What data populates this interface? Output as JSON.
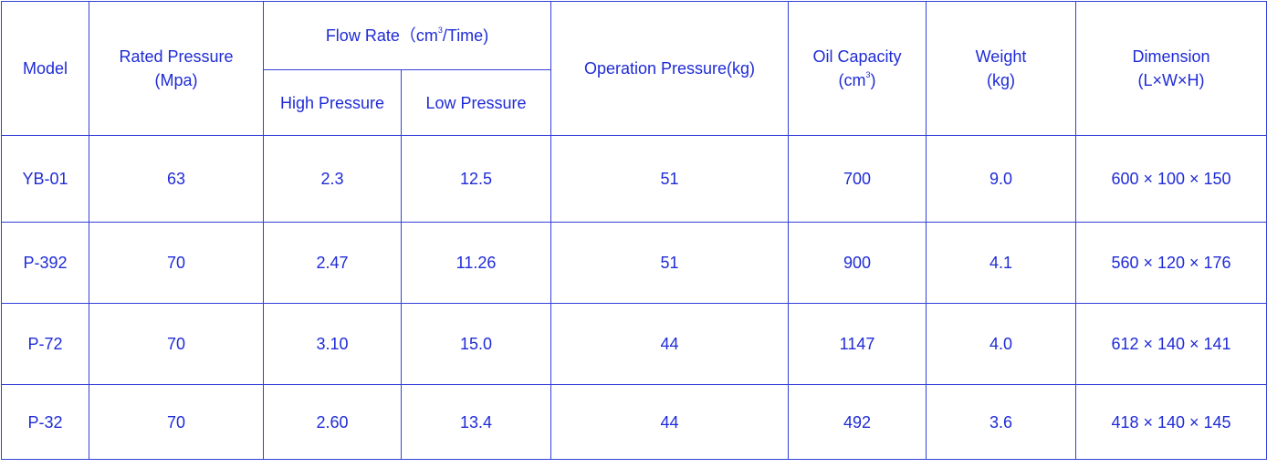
{
  "headers": {
    "model": "Model",
    "rated_pressure": {
      "line1": "Rated Pressure",
      "line2": "(Mpa)"
    },
    "flow_rate": {
      "prefix": "Flow Rate（cm",
      "sup": "3",
      "suffix": "/Time)"
    },
    "high_pressure": "High Pressure",
    "low_pressure": "Low Pressure",
    "operation_pressure": "Operation Pressure(kg)",
    "oil_capacity": {
      "line1": "Oil Capacity",
      "line2_prefix": "(cm",
      "sup": "3",
      "line2_suffix": ")"
    },
    "weight": {
      "line1": "Weight",
      "line2": "(kg)"
    },
    "dimension": {
      "line1": "Dimension",
      "line2": "(L×W×H)"
    }
  },
  "rows": [
    {
      "model": "YB-01",
      "rated": "63",
      "high": "2.3",
      "low": "12.5",
      "operation": "51",
      "oil": "700",
      "weight": "9.0",
      "dimension": "600 × 100 × 150"
    },
    {
      "model": "P-392",
      "rated": "70",
      "high": "2.47",
      "low": "11.26",
      "operation": "51",
      "oil": "900",
      "weight": "4.1",
      "dimension": "560 × 120 × 176"
    },
    {
      "model": "P-72",
      "rated": "70",
      "high": "3.10",
      "low": "15.0",
      "operation": "44",
      "oil": "1147",
      "weight": "4.0",
      "dimension": "612 × 140 × 141"
    },
    {
      "model": "P-32",
      "rated": "70",
      "high": "2.60",
      "low": "13.4",
      "operation": "44",
      "oil": "492",
      "weight": "3.6",
      "dimension": "418 × 140 × 145"
    }
  ],
  "colors": {
    "text": "#1f2bd6",
    "border": "#3340d8",
    "background": "#ffffff"
  }
}
